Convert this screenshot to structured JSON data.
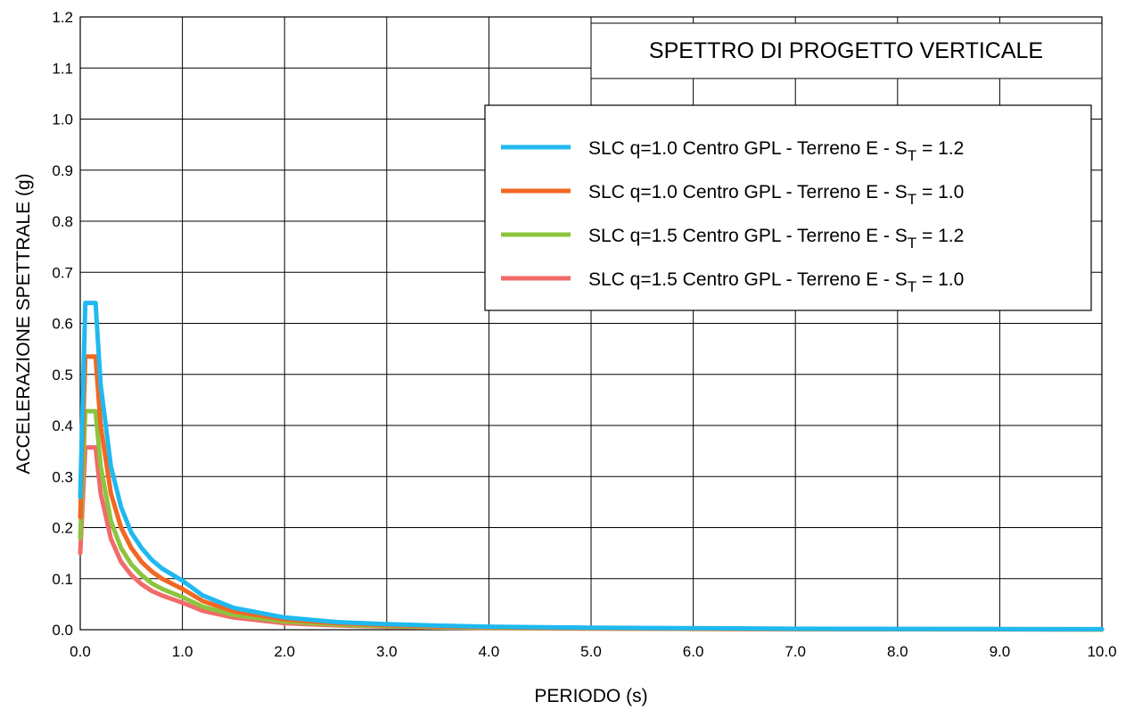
{
  "chart_data": {
    "type": "line",
    "title": "SPETTRO DI PROGETTO VERTICALE",
    "xlabel": "PERIODO (s)",
    "ylabel": "ACCELERAZIONE SPETTRALE (g)",
    "xlim": [
      0,
      10
    ],
    "ylim": [
      0,
      1.2
    ],
    "xticks": [
      "0.0",
      "1.0",
      "2.0",
      "3.0",
      "4.0",
      "5.0",
      "6.0",
      "7.0",
      "8.0",
      "9.0",
      "10.0"
    ],
    "yticks": [
      "0.0",
      "0.1",
      "0.2",
      "0.3",
      "0.4",
      "0.5",
      "0.6",
      "0.7",
      "0.8",
      "0.9",
      "1.0",
      "1.1",
      "1.2"
    ],
    "grid": true,
    "legend_position": "top-right",
    "series": [
      {
        "name": "SLC q=1.0 Centro GPL - Terreno E - ST = 1.2",
        "legend_prefix": "SLC q=1.0 Centro GPL - Terreno E - S",
        "legend_sub": "T",
        "legend_suffix": " = 1.2",
        "color": "#1fb9f0",
        "x": [
          0,
          0.05,
          0.15,
          0.2,
          0.3,
          0.4,
          0.5,
          0.6,
          0.7,
          0.8,
          1.0,
          1.2,
          1.5,
          2.0,
          2.5,
          3.0,
          3.5,
          4.0,
          5.0,
          6.0,
          7.0,
          8.0,
          9.0,
          10.0
        ],
        "y": [
          0.26,
          0.64,
          0.64,
          0.48,
          0.32,
          0.24,
          0.19,
          0.16,
          0.137,
          0.12,
          0.096,
          0.067,
          0.043,
          0.024,
          0.015,
          0.011,
          0.008,
          0.006,
          0.004,
          0.003,
          0.002,
          0.0015,
          0.0012,
          0.001
        ]
      },
      {
        "name": "SLC q=1.0 Centro GPL - Terreno E - ST = 1.0",
        "legend_prefix": "SLC q=1.0 Centro GPL - Terreno E - S",
        "legend_sub": "T",
        "legend_suffix": " = 1.0",
        "color": "#f26722",
        "x": [
          0,
          0.05,
          0.15,
          0.2,
          0.3,
          0.4,
          0.5,
          0.6,
          0.7,
          0.8,
          1.0,
          1.2,
          1.5,
          2.0,
          2.5,
          3.0,
          3.5,
          4.0,
          5.0,
          6.0,
          7.0,
          8.0,
          9.0,
          10.0
        ],
        "y": [
          0.22,
          0.535,
          0.535,
          0.4,
          0.267,
          0.2,
          0.16,
          0.133,
          0.114,
          0.1,
          0.08,
          0.056,
          0.036,
          0.02,
          0.013,
          0.009,
          0.0065,
          0.005,
          0.0032,
          0.0022,
          0.0016,
          0.0012,
          0.001,
          0.0008
        ]
      },
      {
        "name": "SLC q=1.5 Centro GPL - Terreno E - ST = 1.2",
        "legend_prefix": "SLC q=1.5 Centro GPL - Terreno E - S",
        "legend_sub": "T",
        "legend_suffix": " = 1.2",
        "color": "#8cc43f",
        "x": [
          0,
          0.05,
          0.15,
          0.2,
          0.3,
          0.4,
          0.5,
          0.6,
          0.7,
          0.8,
          1.0,
          1.2,
          1.5,
          2.0,
          2.5,
          3.0,
          3.5,
          4.0,
          5.0,
          6.0,
          7.0,
          8.0,
          9.0,
          10.0
        ],
        "y": [
          0.18,
          0.428,
          0.428,
          0.32,
          0.213,
          0.16,
          0.128,
          0.107,
          0.091,
          0.08,
          0.064,
          0.045,
          0.029,
          0.016,
          0.01,
          0.007,
          0.0052,
          0.004,
          0.0026,
          0.0018,
          0.0013,
          0.001,
          0.0008,
          0.0006
        ]
      },
      {
        "name": "SLC q=1.5 Centro GPL - Terreno E - ST = 1.0",
        "legend_prefix": "SLC q=1.5 Centro GPL - Terreno E - S",
        "legend_sub": "T",
        "legend_suffix": " = 1.0",
        "color": "#f26a6a",
        "x": [
          0,
          0.05,
          0.15,
          0.2,
          0.3,
          0.4,
          0.5,
          0.6,
          0.7,
          0.8,
          1.0,
          1.2,
          1.5,
          2.0,
          2.5,
          3.0,
          3.5,
          4.0,
          5.0,
          6.0,
          7.0,
          8.0,
          9.0,
          10.0
        ],
        "y": [
          0.15,
          0.357,
          0.357,
          0.267,
          0.178,
          0.133,
          0.107,
          0.089,
          0.076,
          0.067,
          0.053,
          0.037,
          0.024,
          0.013,
          0.0085,
          0.006,
          0.0044,
          0.0033,
          0.0021,
          0.0015,
          0.0011,
          0.0008,
          0.0007,
          0.0005
        ]
      }
    ]
  }
}
